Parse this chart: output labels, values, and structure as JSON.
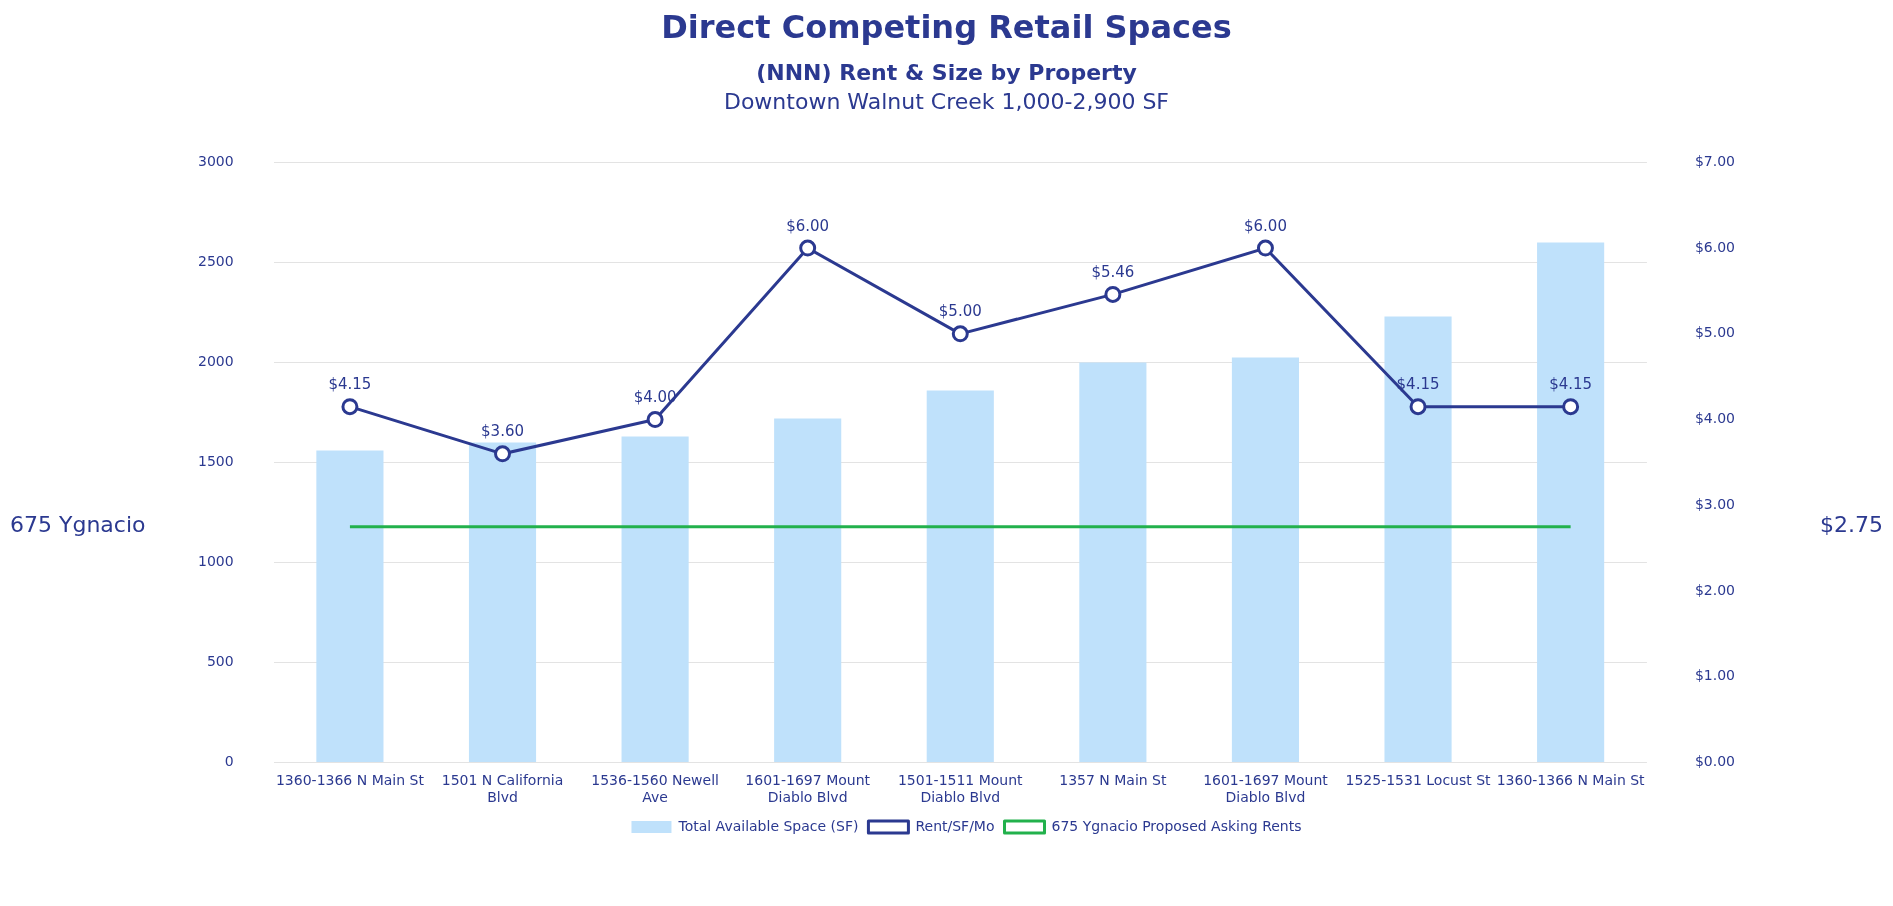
{
  "chart_data": {
    "type": "bar",
    "title": "Direct Competing Retail Spaces",
    "subtitle": "(NNN) Rent & Size by Property",
    "categories": [
      "1360-1366 N Main St",
      "1501 N California Blvd",
      "1536-1560 Newell Ave",
      "1601-1697 Mount Diablo Blvd",
      "1501-1511 Mount Diablo Blvd",
      "1357 N Main St",
      "1601-1697 Mount Diablo Blvd",
      "1525-1531 Locust St",
      "1360-1366 N Main St"
    ],
    "series": [
      {
        "name": "Total Available Space (SF)",
        "color": "#bfe1fb",
        "values": [
          1560,
          1600,
          1630,
          1720,
          1860,
          2000,
          2025,
          2230,
          2600
        ]
      },
      {
        "name": "Rent/SF/Mo",
        "type": "line",
        "axis": "y2",
        "color": "#2b3990",
        "marker": "circle",
        "values": [
          4.15,
          3.6,
          4.0,
          6.0,
          5.0,
          5.46,
          6.0,
          4.15,
          4.15
        ],
        "value_labels": [
          "$4.15",
          "$3.60",
          "$4.00",
          "$6.00",
          "$5.00",
          "$5.46",
          "$6.00",
          "$4.15",
          "$4.15"
        ]
      },
      {
        "name": "675 Ygnacio Proposed Asking Rents",
        "type": "line",
        "axis": "y2",
        "color": "#22b14c",
        "marker": "none",
        "values": [
          2.75,
          2.75,
          2.75,
          2.75,
          2.75,
          2.75,
          2.75,
          2.75,
          2.75
        ]
      }
    ],
    "ylim": [
      0,
      3000
    ],
    "yticks": [
      0,
      500,
      1000,
      1500,
      2000,
      2500,
      3000
    ],
    "y2lim": [
      0,
      7
    ],
    "y2ticks": [
      {
        "value": 0,
        "label": "$0.00"
      },
      {
        "value": 1,
        "label": "$1.00"
      },
      {
        "value": 2,
        "label": "$2.00"
      },
      {
        "value": 3,
        "label": "$3.00"
      },
      {
        "value": 4,
        "label": "$4.00"
      },
      {
        "value": 5,
        "label": "$5.00"
      },
      {
        "value": 6,
        "label": "$6.00"
      },
      {
        "value": 7,
        "label": "$7.00"
      }
    ],
    "annotations": [
      "Downtown Walnut Creek 1,000-2,900 SF",
      "675 Ygnacio",
      "$2.75"
    ],
    "grid": "y",
    "legend": "bottom"
  }
}
